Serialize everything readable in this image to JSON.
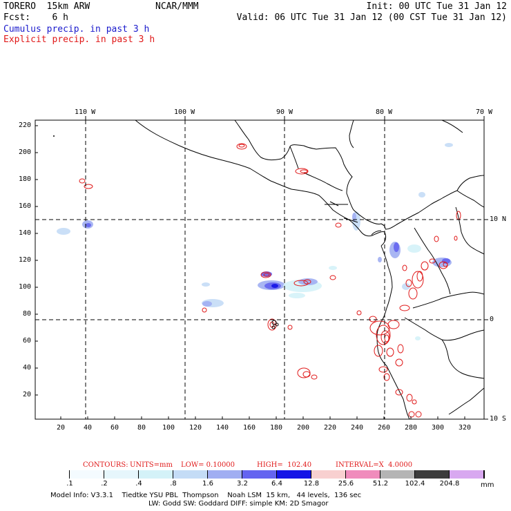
{
  "header": {
    "model": "TORERO  15km ARW",
    "center": "NCAR/MMM",
    "init": "Init: 00 UTC Tue 31 Jan 12",
    "fcst": "Fcst:    6 h",
    "valid": "Valid: 06 UTC Tue 31 Jan 12 (00 CST Tue 31 Jan 12)"
  },
  "legend": {
    "cumulus": "Cumulus precip. in past 3 h",
    "explicit": "Explicit precip. in past 3 h"
  },
  "axes": {
    "top_lon": [
      "110 W",
      "100 W",
      "90 W",
      "80 W",
      "70 W"
    ],
    "right_lat": [
      "10 N",
      "0",
      "10 S"
    ],
    "y_ticks": [
      "220",
      "200",
      "180",
      "160",
      "140",
      "120",
      "100",
      "80",
      "60",
      "40",
      "20"
    ],
    "x_ticks": [
      "20",
      "40",
      "60",
      "80",
      "100",
      "120",
      "140",
      "160",
      "180",
      "200",
      "220",
      "240",
      "260",
      "280",
      "300",
      "320"
    ]
  },
  "contours": {
    "label": "CONTOURS:",
    "units": "UNITS=mm",
    "low": "LOW= 0.10000",
    "high": "HIGH=  102.40",
    "interval": "INTERVAL=X  4.0000"
  },
  "colorbar": {
    "levels": [
      ".1",
      ".2",
      ".4",
      ".8",
      "1.6",
      "3.2",
      "6.4",
      "12.8",
      "25.6",
      "51.2",
      "102.4",
      "204.8"
    ],
    "unit": "mm",
    "colors": [
      "#ffffff",
      "#f4fbff",
      "#e6f6fc",
      "#d4f2f8",
      "#c4dcf6",
      "#a0aef2",
      "#6464f0",
      "#1414e6",
      "#f8d0d0",
      "#f08cbc",
      "#b4b4b4",
      "#3c3c3c",
      "#d8a8f0"
    ]
  },
  "model_info": {
    "line1": "Model Info: V3.3.1    Tiedtke YSU PBL  Thompson    Noah LSM  15 km,   44 levels,  136 sec",
    "line2": "LW: Godd SW: Goddard DIFF: simple KM: 2D Smagor"
  }
}
